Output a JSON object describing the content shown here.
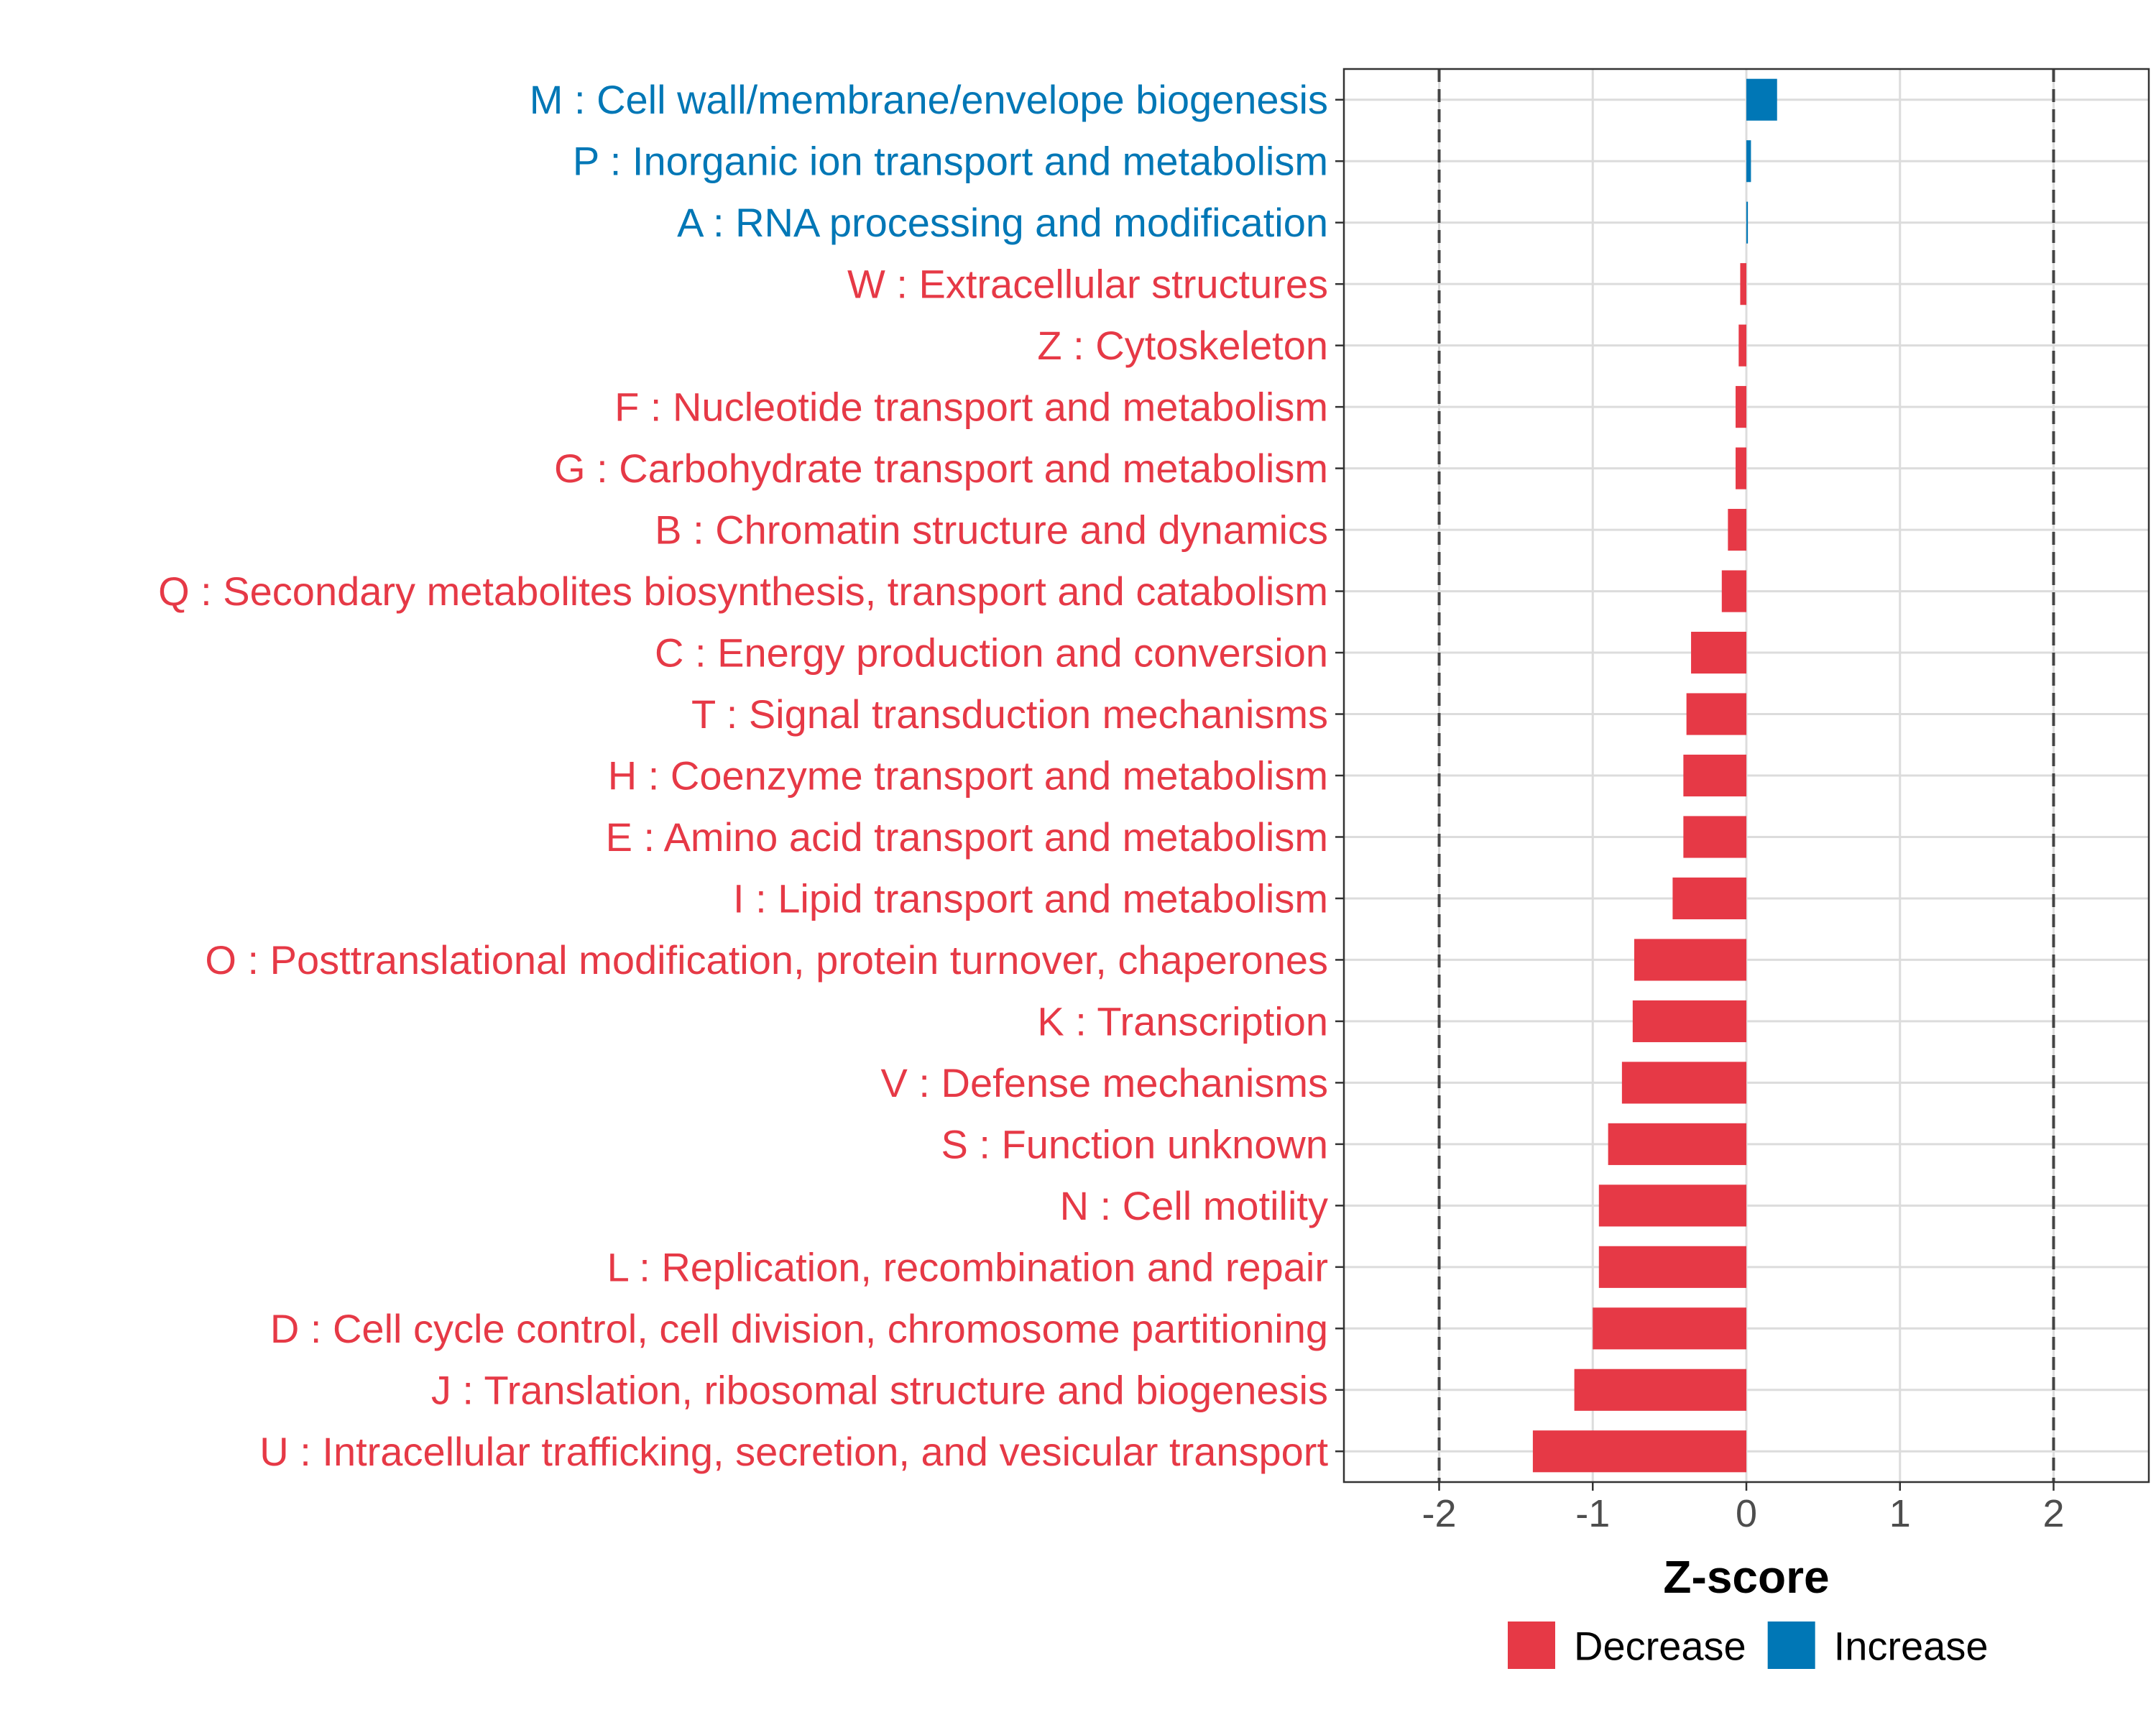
{
  "chart_data": {
    "type": "bar",
    "orientation": "horizontal",
    "xlabel": "Z-score",
    "ylabel": "",
    "xlim": [
      -2.62,
      2.62
    ],
    "xticks": [
      -2,
      -1,
      0,
      1,
      2
    ],
    "tick_labels": [
      "-2",
      "-1",
      "0",
      "1",
      "2"
    ],
    "reference_lines": [
      -2,
      2
    ],
    "grid": true,
    "legend_position": "bottom",
    "colors": {
      "Decrease": "#e63946",
      "Increase": "#0077b6"
    },
    "legend": [
      {
        "name": "Decrease",
        "color": "#e63946"
      },
      {
        "name": "Increase",
        "color": "#0077b6"
      }
    ],
    "categories": [
      "M : Cell wall/membrane/envelope biogenesis",
      "P : Inorganic ion transport and metabolism",
      "A : RNA processing and modification",
      "W : Extracellular structures",
      "Z : Cytoskeleton",
      "F : Nucleotide transport and metabolism",
      "G : Carbohydrate transport and metabolism",
      "B : Chromatin structure and dynamics",
      "Q : Secondary metabolites biosynthesis, transport and catabolism",
      "C : Energy production and conversion",
      "T : Signal transduction mechanisms",
      "H : Coenzyme transport and metabolism",
      "E : Amino acid transport and metabolism",
      "I : Lipid transport and metabolism",
      "O : Posttranslational modification, protein turnover, chaperones",
      "K : Transcription",
      "V : Defense mechanisms",
      "S : Function unknown",
      "N : Cell motility",
      "L : Replication, recombination and repair",
      "D : Cell cycle control, cell division, chromosome partitioning",
      "J : Translation, ribosomal structure and biogenesis",
      "U : Intracellular trafficking, secretion, and vesicular transport"
    ],
    "values": [
      0.2,
      0.03,
      0.01,
      -0.04,
      -0.05,
      -0.07,
      -0.07,
      -0.12,
      -0.16,
      -0.36,
      -0.39,
      -0.41,
      -0.41,
      -0.48,
      -0.73,
      -0.74,
      -0.81,
      -0.9,
      -0.96,
      -0.96,
      -1.0,
      -1.12,
      -1.39
    ],
    "direction": [
      "Increase",
      "Increase",
      "Increase",
      "Decrease",
      "Decrease",
      "Decrease",
      "Decrease",
      "Decrease",
      "Decrease",
      "Decrease",
      "Decrease",
      "Decrease",
      "Decrease",
      "Decrease",
      "Decrease",
      "Decrease",
      "Decrease",
      "Decrease",
      "Decrease",
      "Decrease",
      "Decrease",
      "Decrease",
      "Decrease"
    ]
  }
}
